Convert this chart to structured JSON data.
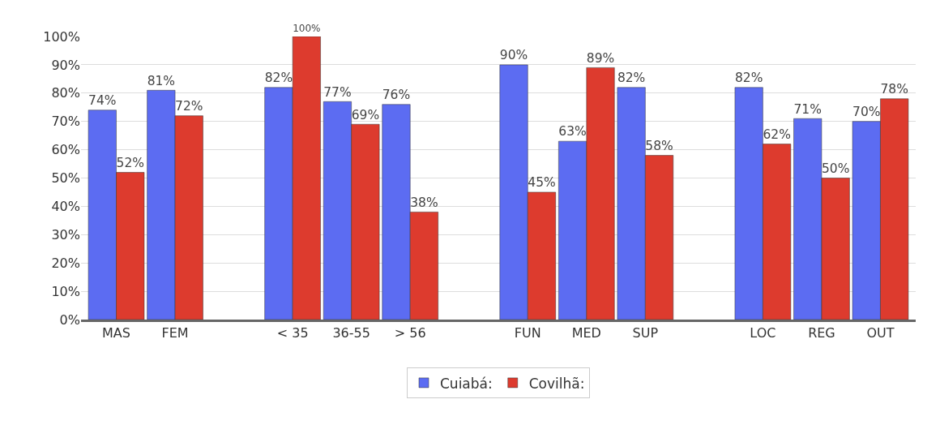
{
  "chart_data": {
    "type": "bar",
    "categories": [
      "MAS",
      "FEM",
      null,
      "< 35",
      "36-55",
      "> 56",
      null,
      "FUN",
      "MED",
      "SUP",
      null,
      "LOC",
      "REG",
      "OUT"
    ],
    "series": [
      {
        "name": "Cuiabá:",
        "color": "#5c6cf2",
        "values": [
          74,
          81,
          null,
          82,
          77,
          76,
          null,
          90,
          63,
          82,
          null,
          82,
          71,
          70
        ],
        "value_labels": [
          "74%",
          "81%",
          null,
          "82%",
          "77%",
          "76%",
          null,
          "90%",
          "63%",
          "82%",
          null,
          "82%",
          "71%",
          "70%"
        ]
      },
      {
        "name": "Covilhã:",
        "color": "#dd3b2e",
        "values": [
          52,
          72,
          null,
          100,
          69,
          38,
          null,
          45,
          89,
          58,
          null,
          62,
          50,
          78
        ],
        "value_labels": [
          "52%",
          "72%",
          null,
          "100%",
          "69%",
          "38%",
          null,
          "45%",
          "89%",
          "58%",
          null,
          "62%",
          "50%",
          "78%"
        ]
      }
    ],
    "ylim": [
      0,
      100
    ],
    "yticks": [
      {
        "value": 0,
        "label": "0%"
      },
      {
        "value": 10,
        "label": "10%"
      },
      {
        "value": 20,
        "label": "20%"
      },
      {
        "value": 30,
        "label": "30%"
      },
      {
        "value": 40,
        "label": "40%"
      },
      {
        "value": 50,
        "label": "50%"
      },
      {
        "value": 60,
        "label": "60%"
      },
      {
        "value": 70,
        "label": "70%"
      },
      {
        "value": 80,
        "label": "80%"
      },
      {
        "value": 90,
        "label": "90%"
      },
      {
        "value": 100,
        "label": "100%"
      }
    ],
    "grid": "y",
    "legend": "bottom"
  }
}
